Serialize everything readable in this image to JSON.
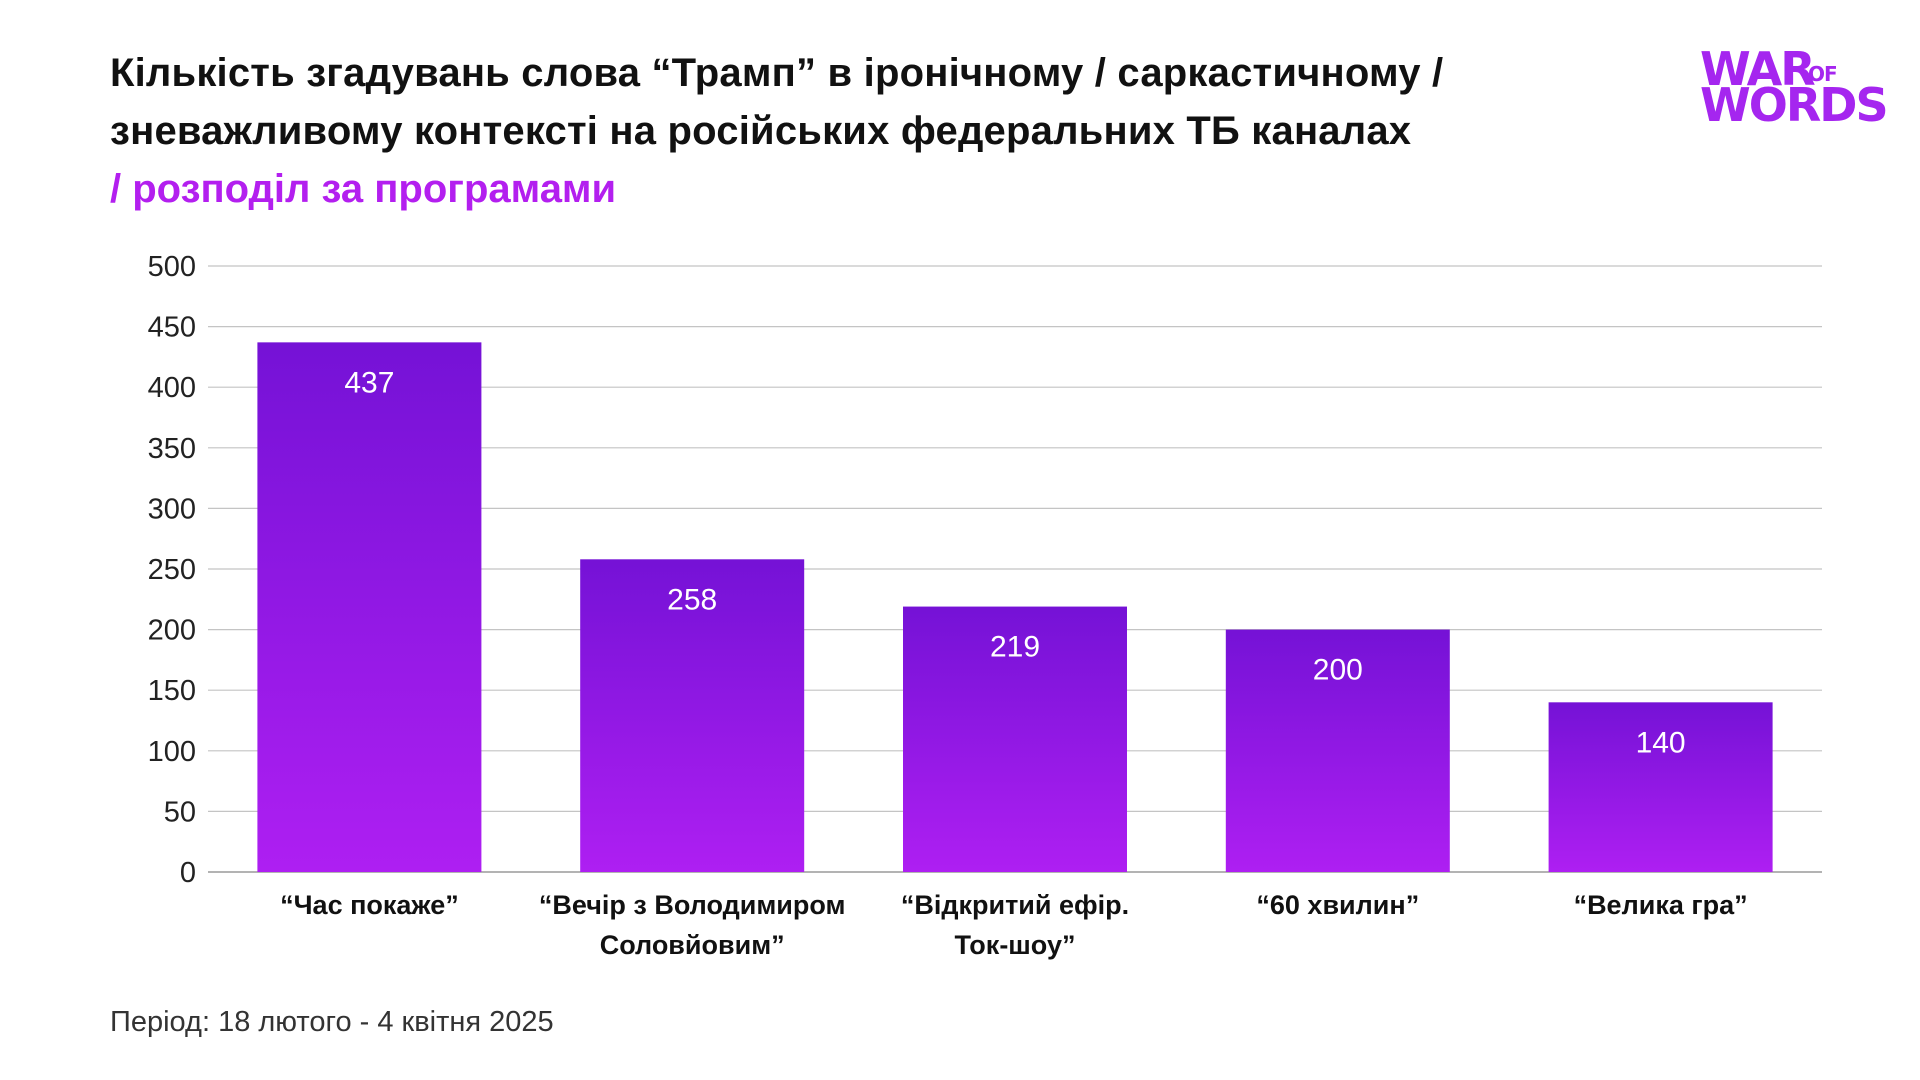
{
  "title": {
    "line1": "Кількість згадувань слова “Трамп” в іронічному / саркастичному /",
    "line2": "зневажливому контексті на російських федеральних ТБ каналах",
    "subtitle": "/ розподіл за програмами"
  },
  "logo": {
    "war": "WAR",
    "of": "OF",
    "words": "WORDS",
    "color": "#a526ef"
  },
  "footer": {
    "period": "Період: 18 лютого - 4 квітня 2025"
  },
  "chart_data": {
    "type": "bar",
    "categories": [
      [
        "“Час покаже”"
      ],
      [
        "“Вечір з Володимиром",
        "Соловйовим”"
      ],
      [
        "“Відкритий ефір.",
        "Ток-шоу”"
      ],
      [
        "“60 хвилин”"
      ],
      [
        "“Велика гра”"
      ]
    ],
    "values": [
      437,
      258,
      219,
      200,
      140
    ],
    "value_labels": [
      "437",
      "258",
      "219",
      "200",
      "140"
    ],
    "ylim": [
      0,
      500
    ],
    "yticks": [
      "0",
      "50",
      "100",
      "150",
      "200",
      "250",
      "300",
      "350",
      "400",
      "450",
      "500"
    ],
    "grid": true,
    "bar_color_top": "#7512d6",
    "bar_color_bottom": "#ae1ff2",
    "value_label_color": "#ffffff"
  }
}
